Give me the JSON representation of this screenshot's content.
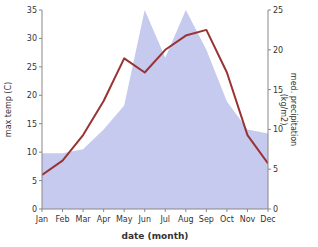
{
  "chart_data": {
    "type": "line",
    "categories": [
      "Jan",
      "Feb",
      "Mar",
      "Apr",
      "May",
      "Jun",
      "Jul",
      "Aug",
      "Sep",
      "Oct",
      "Nov",
      "Dec"
    ],
    "series": [
      {
        "type": "area",
        "axis": "y2",
        "color": "#c5caee",
        "values": [
          7,
          7,
          7.5,
          10,
          13,
          25,
          19,
          25,
          20,
          13.5,
          10,
          9.5
        ]
      },
      {
        "type": "line",
        "color": "#993333",
        "values": [
          6,
          8.5,
          13,
          19,
          26.5,
          24,
          28,
          30.5,
          31.5,
          24,
          13,
          8
        ]
      }
    ],
    "xlabel": "date (month)",
    "ylabel": "max temp (C)",
    "y2label": "med. precipitation\n(kg/m2)",
    "ylim": [
      0,
      35
    ],
    "yticks": [
      0,
      5,
      10,
      15,
      20,
      25,
      30,
      35
    ],
    "y2lim": [
      0,
      25
    ],
    "y2ticks": [
      0,
      5,
      10,
      15,
      20,
      25
    ],
    "grid": false
  }
}
